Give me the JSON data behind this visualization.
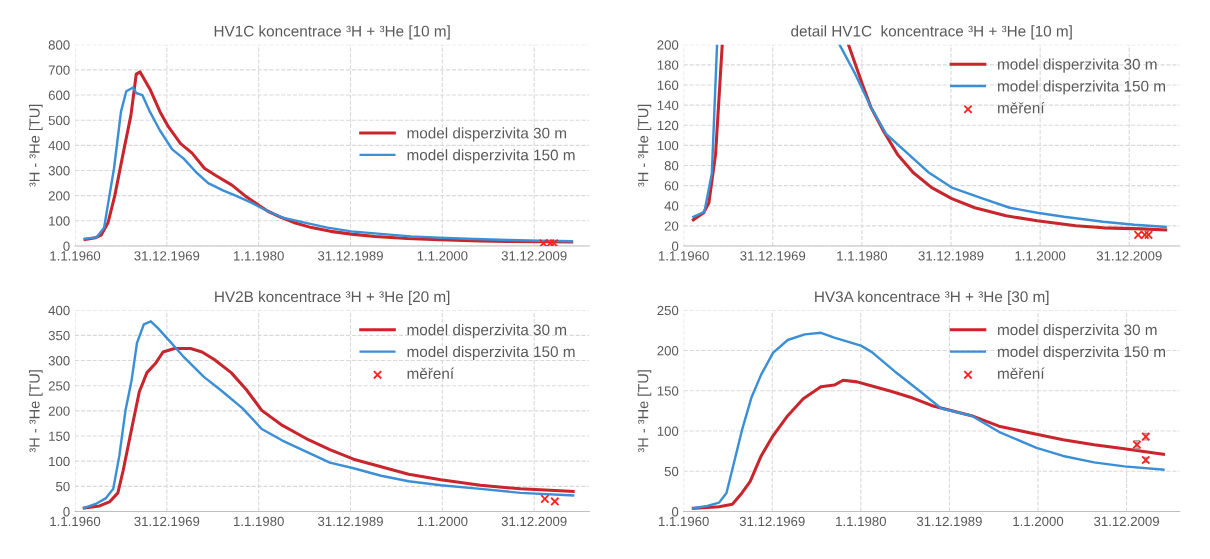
{
  "chart_data": [
    {
      "type": "line",
      "title": "HV1C koncentrace ³H + ³He [10 m]",
      "ylabel": "³H - ³He [TU]",
      "xlim": [
        "1960-01-01",
        "2016-01-01"
      ],
      "xticks": [
        {
          "value": "1960-01-01",
          "label": "1.1.1960"
        },
        {
          "value": "1969-12-31",
          "label": "31.12.1969"
        },
        {
          "value": "1980-01-01",
          "label": "1.1.1980"
        },
        {
          "value": "1989-12-31",
          "label": "31.12.1989"
        },
        {
          "value": "2000-01-01",
          "label": "1.1.2000"
        },
        {
          "value": "2009-12-31",
          "label": "31.12.2009"
        }
      ],
      "ylim": [
        0,
        800
      ],
      "yticks": [
        0,
        100,
        200,
        300,
        400,
        500,
        600,
        700,
        800
      ],
      "grid": true,
      "legend": "right",
      "series": [
        {
          "name": "model disperzivita 30 m",
          "color": "#c8262c",
          "x": [
            "1961-02",
            "1962-04",
            "1962-11",
            "1963-08",
            "1964-05",
            "1965-05",
            "1966-02",
            "1966-09",
            "1967-02",
            "1968-03",
            "1969-04",
            "1970-03",
            "1971-07",
            "1972-10",
            "1974-02",
            "1975-05",
            "1977-02",
            "1978-07",
            "1980-02",
            "1981-01",
            "1982-07",
            "1984-01",
            "1985-10",
            "1987-11",
            "1990-02",
            "1992-09",
            "1996-03",
            "1999-09",
            "2004-01",
            "2007-02",
            "2011-05",
            "2014-02"
          ],
          "values": [
            26,
            33,
            43,
            91,
            200,
            384,
            519,
            683,
            692,
            623,
            534,
            474,
            407,
            369,
            309,
            280,
            242,
            200,
            160,
            138,
            113,
            91,
            73,
            58,
            47,
            38,
            30,
            25,
            20,
            18,
            17,
            16
          ]
        },
        {
          "name": "model disperzivita 150 m",
          "color": "#3a8fd6",
          "x": [
            "1961-02",
            "1962-05",
            "1963-03",
            "1963-10",
            "1964-04",
            "1965-01",
            "1965-08",
            "1966-05",
            "1966-09",
            "1967-05",
            "1968-03",
            "1969-04",
            "1970-08",
            "1971-11",
            "1973-03",
            "1974-07",
            "1976-03",
            "1977-07",
            "1979-04",
            "1981-01",
            "1982-10",
            "1985-04",
            "1987-07",
            "1990-02",
            "1993-08",
            "1996-08",
            "1999-09",
            "2002-09",
            "2007-02",
            "2010-08",
            "2014-02"
          ],
          "values": [
            29,
            34,
            72,
            200,
            309,
            533,
            615,
            630,
            608,
            600,
            533,
            459,
            384,
            347,
            294,
            250,
            220,
            200,
            171,
            138,
            111,
            91,
            73,
            58,
            47,
            38,
            33,
            29,
            24,
            21,
            19
          ]
        },
        {
          "type": "scatter",
          "marker": "cross",
          "color": "#ff2020",
          "x": [
            "2011-01",
            "2011-10",
            "2012-03"
          ],
          "values": [
            11,
            11,
            11
          ]
        }
      ]
    },
    {
      "type": "line",
      "title": "detail HV1C  koncentrace ³H + ³He [10 m]",
      "ylabel": "³H - ³He [TU]",
      "xlim": [
        "1960-01-01",
        "2015-09-01"
      ],
      "xticks": [
        {
          "value": "1960-01-01",
          "label": "1.1.1960"
        },
        {
          "value": "1969-12-31",
          "label": "31.12.1969"
        },
        {
          "value": "1980-01-01",
          "label": "1.1.1980"
        },
        {
          "value": "1989-12-31",
          "label": "31.12.1989"
        },
        {
          "value": "2000-01-01",
          "label": "1.1.2000"
        },
        {
          "value": "2009-12-31",
          "label": "31.12.2009"
        }
      ],
      "ylim": [
        0,
        200
      ],
      "yticks": [
        0,
        20,
        40,
        60,
        80,
        100,
        120,
        140,
        160,
        180,
        200
      ],
      "grid": true,
      "legend": "top right",
      "series": [
        {
          "name": "model disperzivita 30 m",
          "color": "#c8262c",
          "x": [
            "1961-02",
            "1962-04",
            "1962-11",
            "1963-08",
            "1964-05",
            "1970-01",
            "1978-07",
            "1980-02",
            "1981-01",
            "1982-07",
            "1984-01",
            "1985-10",
            "1987-11",
            "1990-02",
            "1992-09",
            "1996-03",
            "1999-09",
            "2004-01",
            "2007-02",
            "2011-05",
            "2014-02"
          ],
          "values": [
            26,
            33,
            43,
            91,
            200,
            null,
            200,
            160,
            138,
            113,
            91,
            73,
            58,
            47,
            38,
            30,
            25,
            20,
            18,
            17,
            16
          ]
        },
        {
          "name": "model disperzivita 150 m",
          "color": "#3a8fd6",
          "x": [
            "1961-02",
            "1962-05",
            "1963-03",
            "1963-10",
            "1970-01",
            "1977-07",
            "1979-04",
            "1981-01",
            "1982-10",
            "1985-04",
            "1987-07",
            "1990-02",
            "1993-08",
            "1996-08",
            "1999-09",
            "2002-09",
            "2007-02",
            "2010-08",
            "2014-02"
          ],
          "values": [
            29,
            34,
            72,
            200,
            null,
            200,
            171,
            138,
            111,
            91,
            73,
            58,
            47,
            38,
            33,
            29,
            24,
            21,
            19
          ]
        },
        {
          "name": "měření",
          "type": "scatter",
          "marker": "cross",
          "color": "#ff2020",
          "x": [
            "2011-01",
            "2011-10",
            "2012-03"
          ],
          "values": [
            11,
            11,
            11
          ]
        }
      ]
    },
    {
      "type": "line",
      "title": "HV2B koncentrace ³H + ³He [20 m]",
      "ylabel": "³H - ³He [TU]",
      "xlim": [
        "1960-01-01",
        "2016-01-01"
      ],
      "xticks": [
        {
          "value": "1960-01-01",
          "label": "1.1.1960"
        },
        {
          "value": "1969-12-31",
          "label": "31.12.1969"
        },
        {
          "value": "1980-01-01",
          "label": "1.1.1980"
        },
        {
          "value": "1989-12-31",
          "label": "31.12.1989"
        },
        {
          "value": "2000-01-01",
          "label": "1.1.2000"
        },
        {
          "value": "2009-12-31",
          "label": "31.12.2009"
        }
      ],
      "ylim": [
        0,
        400
      ],
      "yticks": [
        0,
        50,
        100,
        150,
        200,
        250,
        300,
        350,
        400
      ],
      "grid": true,
      "legend": "top right",
      "series": [
        {
          "name": "model disperzivita 30 m",
          "color": "#c8262c",
          "x": [
            "1961-01",
            "1962-09",
            "1963-10",
            "1964-09",
            "1965-04",
            "1966-03",
            "1967-01",
            "1967-11",
            "1968-10",
            "1969-08",
            "1970-11",
            "1972-08",
            "1973-11",
            "1975-03",
            "1977-01",
            "1978-09",
            "1980-05",
            "1982-08",
            "1985-03",
            "1987-10",
            "1990-05",
            "1993-05",
            "1996-05",
            "1999-11",
            "2004-03",
            "2008-07",
            "2014-04"
          ],
          "values": [
            7,
            11,
            19,
            37,
            82,
            164,
            238,
            276,
            294,
            317,
            324,
            324,
            317,
            302,
            276,
            242,
            201,
            171,
            145,
            123,
            104,
            89,
            74,
            63,
            52,
            45,
            40
          ]
        },
        {
          "name": "model disperzivita 150 m",
          "color": "#3a8fd6",
          "x": [
            "1961-01",
            "1962-04",
            "1963-05",
            "1964-03",
            "1964-11",
            "1965-07",
            "1966-03",
            "1966-10",
            "1967-07",
            "1968-04",
            "1969-01",
            "1970-02",
            "1971-10",
            "1974-01",
            "1976-02",
            "1978-04",
            "1980-05",
            "1982-08",
            "1985-03",
            "1987-10",
            "1990-05",
            "1993-05",
            "1996-05",
            "1999-11",
            "2004-03",
            "2008-07",
            "2014-04"
          ],
          "values": [
            7,
            15,
            26,
            45,
            112,
            201,
            261,
            335,
            372,
            378,
            365,
            343,
            309,
            268,
            238,
            205,
            164,
            141,
            119,
            97,
            86,
            71,
            60,
            52,
            45,
            37,
            32
          ]
        },
        {
          "name": "měření",
          "type": "scatter",
          "marker": "cross",
          "color": "#ff2020",
          "x": [
            "2011-03",
            "2012-04"
          ],
          "values": [
            25,
            20
          ]
        }
      ]
    },
    {
      "type": "line",
      "title": "HV3A koncentrace ³H + ³He [30 m]",
      "ylabel": "³H - ³He [TU]",
      "xlim": [
        "1960-01-01",
        "2016-01-01"
      ],
      "xticks": [
        {
          "value": "1960-01-01",
          "label": "1.1.1960"
        },
        {
          "value": "1969-12-31",
          "label": "31.12.1969"
        },
        {
          "value": "1980-01-01",
          "label": "1.1.1980"
        },
        {
          "value": "1989-12-31",
          "label": "31.12.1989"
        },
        {
          "value": "2000-01-01",
          "label": "1.1.2000"
        },
        {
          "value": "2009-12-31",
          "label": "31.12.2009"
        }
      ],
      "ylim": [
        0,
        250
      ],
      "yticks": [
        0,
        50,
        100,
        150,
        200,
        250
      ],
      "grid": true,
      "legend": "top right",
      "series": [
        {
          "name": "model disperzivita 30 m",
          "color": "#c8262c",
          "x": [
            "1961-02",
            "1964-01",
            "1965-07",
            "1966-08",
            "1967-07",
            "1968-10",
            "1970-02",
            "1971-10",
            "1973-07",
            "1975-07",
            "1977-01",
            "1978-01",
            "1979-08",
            "1981-04",
            "1983-07",
            "1985-08",
            "1988-03",
            "1992-07",
            "1995-08",
            "1999-11",
            "2002-11",
            "2006-05",
            "2009-10",
            "2014-03"
          ],
          "values": [
            4,
            6,
            9,
            23,
            37,
            69,
            94,
            119,
            140,
            155,
            157,
            163,
            161,
            156,
            149,
            142,
            131,
            119,
            106,
            96,
            89,
            83,
            78,
            71
          ]
        },
        {
          "name": "model disperzivita 150 m",
          "color": "#3a8fd6",
          "x": [
            "1961-02",
            "1962-09",
            "1964-01",
            "1964-11",
            "1965-09",
            "1966-08",
            "1967-09",
            "1968-10",
            "1970-02",
            "1971-10",
            "1973-09",
            "1975-07",
            "1977-01",
            "1980-01",
            "1981-04",
            "1983-11",
            "1986-07",
            "1989-02",
            "1992-07",
            "1995-08",
            "1999-11",
            "2002-11",
            "2006-05",
            "2009-10",
            "2014-03"
          ],
          "values": [
            4,
            7,
            11,
            23,
            60,
            101,
            142,
            170,
            197,
            213,
            220,
            222,
            216,
            206,
            198,
            174,
            151,
            128,
            119,
            99,
            79,
            69,
            61,
            56,
            52
          ]
        },
        {
          "name": "měření",
          "type": "scatter",
          "marker": "cross",
          "color": "#ff2020",
          "x": [
            "2011-03",
            "2012-03",
            "2012-03"
          ],
          "values": [
            83,
            93,
            64
          ],
          "errors": [
            5,
            4,
            3
          ]
        }
      ]
    }
  ]
}
